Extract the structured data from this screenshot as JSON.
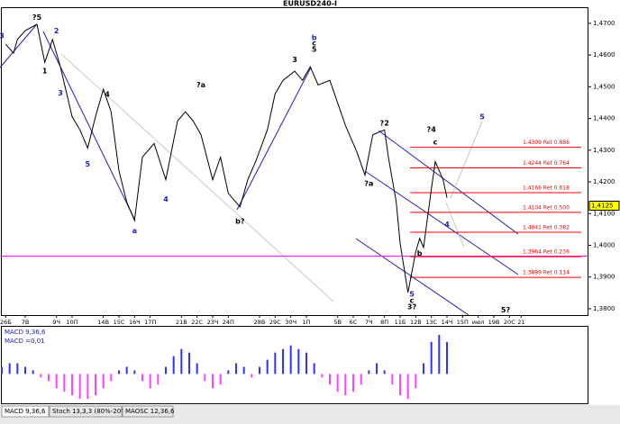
{
  "chart_data": [
    {
      "type": "line",
      "title": "EURUSD240-I",
      "color": "#000000",
      "x": [
        1,
        3,
        4,
        6,
        9,
        11,
        13,
        15,
        18,
        20,
        22,
        24,
        26,
        28,
        30,
        32,
        34,
        36,
        39,
        42,
        45,
        47,
        49,
        51,
        54,
        56,
        58,
        61,
        63,
        65,
        68,
        70,
        72,
        75,
        77,
        79,
        81,
        84,
        86,
        88,
        91,
        93,
        95,
        98,
        99,
        101,
        102,
        104,
        106,
        107,
        108,
        110,
        111,
        113,
        114
      ],
      "values": [
        1.4634,
        1.4606,
        1.4649,
        1.4677,
        1.4697,
        1.4577,
        1.4649,
        1.4563,
        1.4406,
        1.4364,
        1.4307,
        1.4406,
        1.4492,
        1.4421,
        1.4235,
        1.4136,
        1.4079,
        1.4278,
        1.4321,
        1.4207,
        1.4392,
        1.4421,
        1.4392,
        1.4349,
        1.4207,
        1.4278,
        1.4164,
        1.4121,
        1.4207,
        1.4264,
        1.4364,
        1.4478,
        1.452,
        1.4549,
        1.452,
        1.4563,
        1.4506,
        1.452,
        1.4449,
        1.4378,
        1.4292,
        1.4221,
        1.4349,
        1.4364,
        1.4278,
        1.4136,
        1.4007,
        1.3851,
        1.3979,
        1.4022,
        1.3993,
        1.4178,
        1.4264,
        1.4207,
        1.415
      ],
      "xlim": [
        0,
        150
      ],
      "xticks": [
        {
          "value": 1,
          "label": "26Б"
        },
        {
          "value": 6,
          "label": "7В"
        },
        {
          "value": 14,
          "label": "9Ч"
        },
        {
          "value": 18,
          "label": "10П"
        },
        {
          "value": 26,
          "label": "14В"
        },
        {
          "value": 30,
          "label": "15С"
        },
        {
          "value": 34,
          "label": "16Ч"
        },
        {
          "value": 38,
          "label": "17П"
        },
        {
          "value": 46,
          "label": "21В"
        },
        {
          "value": 50,
          "label": "22С"
        },
        {
          "value": 54,
          "label": "23Ч"
        },
        {
          "value": 58,
          "label": "24П"
        },
        {
          "value": 66,
          "label": "28В"
        },
        {
          "value": 70,
          "label": "29С"
        },
        {
          "value": 74,
          "label": "30Ч"
        },
        {
          "value": 78,
          "label": "1П"
        },
        {
          "value": 86,
          "label": "5В"
        },
        {
          "value": 90,
          "label": "6С"
        },
        {
          "value": 94,
          "label": "7Ч"
        },
        {
          "value": 98,
          "label": "8П"
        },
        {
          "value": 102,
          "label": "11Б"
        },
        {
          "value": 106,
          "label": "12В"
        },
        {
          "value": 110,
          "label": "13С"
        },
        {
          "value": 114,
          "label": "14Ч"
        },
        {
          "value": 118,
          "label": "15П"
        },
        {
          "value": 122,
          "label": "июл"
        },
        {
          "value": 126,
          "label": "19В"
        },
        {
          "value": 130,
          "label": "20С"
        },
        {
          "value": 133,
          "label": "21"
        }
      ],
      "ylim": [
        1.378,
        1.4748
      ],
      "yticks": [
        {
          "value": 1.47,
          "label": "1,4700"
        },
        {
          "value": 1.46,
          "label": "1,4600"
        },
        {
          "value": 1.45,
          "label": "1,4500"
        },
        {
          "value": 1.44,
          "label": "1,4400"
        },
        {
          "value": 1.43,
          "label": "1,4300"
        },
        {
          "value": 1.42,
          "label": "1,4200"
        },
        {
          "value": 1.41,
          "label": "1,4100"
        },
        {
          "value": 1.4,
          "label": "1,4000"
        },
        {
          "value": 1.39,
          "label": "1,3900"
        },
        {
          "value": 1.38,
          "label": "1,3800"
        }
      ],
      "last_price": {
        "value": 1.4125,
        "label": "1,4125"
      },
      "hline": {
        "value": 1.3966,
        "color": "#ff00ff"
      },
      "level_color": "#ff0000",
      "levels": [
        {
          "value": 1.4309,
          "label": "1.4309 Ret 0.886"
        },
        {
          "value": 1.4244,
          "label": "1.4244 Ret 0.764"
        },
        {
          "value": 1.4166,
          "label": "1.4166 Ret 0.618"
        },
        {
          "value": 1.4104,
          "label": "1.4104 Ret 0.500"
        },
        {
          "value": 1.4041,
          "label": "1.4041 Ret 0.382"
        },
        {
          "value": 1.3964,
          "label": "1.3964 Ret 0.236"
        },
        {
          "value": 1.3899,
          "label": "1.3899 Ret 0.114"
        }
      ],
      "annotations": [
        {
          "text": "3",
          "x": 0,
          "y": 1.466,
          "color": "#2020c0"
        },
        {
          "text": "?5",
          "x": 9,
          "y": 1.4718,
          "color": "#000000"
        },
        {
          "text": "1",
          "x": 11,
          "y": 1.455,
          "color": "#000000"
        },
        {
          "text": "2",
          "x": 14,
          "y": 1.4675,
          "color": "#2020c0"
        },
        {
          "text": "3",
          "x": 15,
          "y": 1.448,
          "color": "#2020c0"
        },
        {
          "text": "4",
          "x": 27,
          "y": 1.4475,
          "color": "#000000"
        },
        {
          "text": "5",
          "x": 22,
          "y": 1.4255,
          "color": "#2020c0"
        },
        {
          "text": "a",
          "x": 34,
          "y": 1.4045,
          "color": "#2020c0"
        },
        {
          "text": "4",
          "x": 42,
          "y": 1.4145,
          "color": "#2020c0"
        },
        {
          "text": "?a",
          "x": 51,
          "y": 1.4505,
          "color": "#000000"
        },
        {
          "text": "b?",
          "x": 61,
          "y": 1.4075,
          "color": "#000000"
        },
        {
          "text": "b",
          "x": 80,
          "y": 1.4655,
          "color": "#2020c0"
        },
        {
          "text": "c",
          "x": 80,
          "y": 1.4637,
          "color": "#000000"
        },
        {
          "text": "5",
          "x": 80,
          "y": 1.4617,
          "color": "#000000"
        },
        {
          "text": "3",
          "x": 75,
          "y": 1.4585,
          "color": "#000000"
        },
        {
          "text": "?2",
          "x": 98,
          "y": 1.4385,
          "color": "#000000"
        },
        {
          "text": "?a",
          "x": 94,
          "y": 1.4195,
          "color": "#000000"
        },
        {
          "text": "5",
          "x": 105,
          "y": 1.3845,
          "color": "#2020c0"
        },
        {
          "text": "c",
          "x": 105,
          "y": 1.3825,
          "color": "#000000"
        },
        {
          "text": "3?",
          "x": 105,
          "y": 1.3805,
          "color": "#000000"
        },
        {
          "text": "b",
          "x": 107,
          "y": 1.3975,
          "color": "#000000"
        },
        {
          "text": "?4",
          "x": 110,
          "y": 1.4365,
          "color": "#000000"
        },
        {
          "text": "c",
          "x": 111,
          "y": 1.4325,
          "color": "#000000"
        },
        {
          "text": "5",
          "x": 123,
          "y": 1.4405,
          "color": "#2020c0"
        },
        {
          "text": "4",
          "x": 114,
          "y": 1.4065,
          "color": "#2020c0"
        },
        {
          "text": "5?",
          "x": 129,
          "y": 1.3795,
          "color": "#000000"
        }
      ]
    },
    {
      "type": "bar",
      "title": "MACD 9,36,6",
      "value_text": "MACD =0,01",
      "positive_color": "#3030ff",
      "negative_color": "#ff40ff",
      "x": [
        0,
        2,
        4,
        6,
        8,
        10,
        12,
        14,
        16,
        18,
        20,
        22,
        24,
        26,
        28,
        30,
        32,
        34,
        36,
        38,
        40,
        42,
        44,
        46,
        48,
        50,
        52,
        54,
        56,
        58,
        60,
        62,
        64,
        66,
        68,
        70,
        72,
        74,
        76,
        78,
        80,
        82,
        84,
        86,
        88,
        90,
        92,
        94,
        96,
        98,
        100,
        102,
        104,
        106,
        108,
        110,
        112,
        114
      ],
      "values": [
        0.002,
        0.003,
        0.003,
        0.002,
        0.001,
        -0.001,
        -0.002,
        -0.004,
        -0.005,
        -0.006,
        -0.007,
        -0.007,
        -0.006,
        -0.004,
        -0.002,
        0.001,
        0.002,
        0.001,
        -0.002,
        -0.004,
        -0.003,
        0.002,
        0.005,
        0.007,
        0.006,
        0.003,
        -0.002,
        -0.004,
        -0.003,
        0.001,
        0.003,
        0.002,
        -0.001,
        0.002,
        0.004,
        0.006,
        0.007,
        0.008,
        0.007,
        0.006,
        0.003,
        -0.001,
        -0.003,
        -0.005,
        -0.006,
        -0.005,
        -0.003,
        0.001,
        0.003,
        0.001,
        -0.003,
        -0.006,
        -0.007,
        -0.004,
        0.003,
        0.009,
        0.011,
        0.009
      ],
      "xlim": [
        0,
        150
      ],
      "ylim": [
        -0.008,
        0.013
      ]
    }
  ],
  "tabs": [
    "MACD 9,36,6",
    "Stoch 13,3,3 (80%-20%)",
    "MAOSC 12,36,6"
  ]
}
